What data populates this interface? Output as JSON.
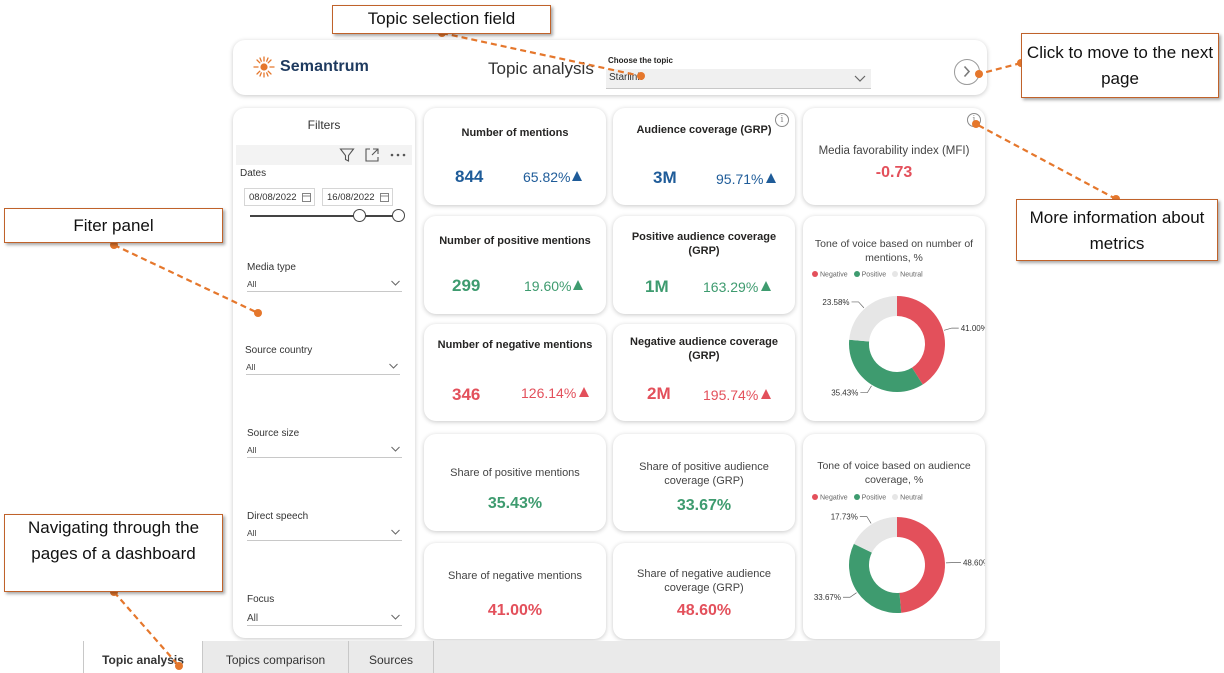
{
  "header": {
    "logo_text": "Semantrum",
    "title": "Topic analysis",
    "topic_label": "Choose the topic",
    "topic_value": "Starlink",
    "next_icon": "chevron-right-circle-icon"
  },
  "filters": {
    "title": "Filters",
    "dates_label": "Dates",
    "date_from": "08/08/2022",
    "date_to": "16/08/2022",
    "fields": [
      {
        "label": "Media type",
        "value": "All"
      },
      {
        "label": "Source country",
        "value": "All"
      },
      {
        "label": "Source size",
        "value": "All"
      },
      {
        "label": "Direct speech",
        "value": "All"
      },
      {
        "label": "Focus",
        "value": "All"
      }
    ]
  },
  "metrics": {
    "mentions": {
      "title": "Number of mentions",
      "value": "844",
      "change": "65.82%"
    },
    "audience": {
      "title": "Audience coverage (GRP)",
      "value": "3M",
      "change": "95.71%"
    },
    "mfi": {
      "title": "Media favorability index (MFI)",
      "value": "-0.73"
    },
    "pos_mentions": {
      "title": "Number of positive mentions",
      "value": "299",
      "change": "19.60%"
    },
    "pos_audience": {
      "title": "Positive audience coverage (GRP)",
      "value": "1M",
      "change": "163.29%"
    },
    "neg_mentions": {
      "title": "Number of negative mentions",
      "value": "346",
      "change": "126.14%"
    },
    "neg_audience": {
      "title": "Negative audience coverage (GRP)",
      "value": "2M",
      "change": "195.74%"
    },
    "share_pos_mentions": {
      "title": "Share of positive mentions",
      "value": "35.43%"
    },
    "share_pos_audience": {
      "title": "Share of positive audience coverage (GRP)",
      "value": "33.67%"
    },
    "share_neg_mentions": {
      "title": "Share of negative mentions",
      "value": "41.00%"
    },
    "share_neg_audience": {
      "title": "Share of negative audience coverage (GRP)",
      "value": "48.60%"
    }
  },
  "colors": {
    "negative": "#e3505b",
    "positive": "#3e9b6f",
    "neutral": "#e6e6e6",
    "primary": "#1f5c99"
  },
  "legend": {
    "negative": "Negative",
    "positive": "Positive",
    "neutral": "Neutral"
  },
  "chart_data": [
    {
      "type": "pie",
      "title": "Tone of voice based on number of mentions, %",
      "categories": [
        "Negative",
        "Positive",
        "Neutral"
      ],
      "values": [
        41.0,
        35.43,
        23.58
      ],
      "labels": [
        "41.00%",
        "35.43%",
        "23.58%"
      ],
      "legend": "top-left"
    },
    {
      "type": "pie",
      "title": "Tone of voice based on audience coverage, %",
      "categories": [
        "Negative",
        "Positive",
        "Neutral"
      ],
      "values": [
        48.6,
        33.67,
        17.73
      ],
      "labels": [
        "48.60%",
        "33.67%",
        "17.73%"
      ],
      "legend": "top-left"
    }
  ],
  "tabs": [
    {
      "label": "Topic analysis",
      "active": true
    },
    {
      "label": "Topics comparison",
      "active": false
    },
    {
      "label": "Sources",
      "active": false
    }
  ],
  "annotations": {
    "topic_field": "Topic selection field",
    "next_page": "Click to move to the next page",
    "filter_panel": "Fiter panel",
    "more_info": "More information about metrics",
    "navigation": "Navigating through the pages of a dashboard"
  }
}
